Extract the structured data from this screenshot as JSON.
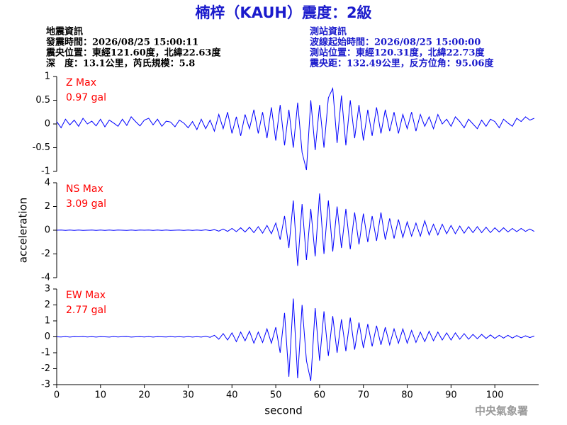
{
  "header": {
    "title": "楠梓（KAUH）震度：2級",
    "event_info": [
      "地震資訊",
      "發震時間：2026/08/25 15:00:11",
      "震央位置：東經121.60度，北緯22.63度",
      "深　度：13.1公里，芮氏規模：5.8"
    ],
    "station_info": [
      "測站資訊",
      "波線起始時間：2026/08/25 15:00:00",
      "測站位置：東經120.31度，北緯22.73度",
      "震央距：132.49公里，反方位角：95.06度"
    ]
  },
  "footer": "中央氣象署",
  "chart_data": [
    {
      "type": "line",
      "annotation": [
        "Z Max",
        "0.97 gal"
      ],
      "color": "#0000ff",
      "annotation_color": "#ff0000",
      "xlim": [
        0,
        110
      ],
      "ylim": [
        -1,
        1
      ],
      "yticks": [
        -1,
        -0.5,
        0,
        0.5,
        1
      ],
      "x": [
        0,
        1,
        2,
        3,
        4,
        5,
        6,
        7,
        8,
        9,
        10,
        11,
        12,
        13,
        14,
        15,
        16,
        17,
        18,
        19,
        20,
        21,
        22,
        23,
        24,
        25,
        26,
        27,
        28,
        29,
        30,
        31,
        32,
        33,
        34,
        35,
        36,
        37,
        38,
        39,
        40,
        41,
        42,
        43,
        44,
        45,
        46,
        47,
        48,
        49,
        50,
        51,
        52,
        53,
        54,
        55,
        56,
        57,
        58,
        59,
        60,
        61,
        62,
        63,
        64,
        65,
        66,
        67,
        68,
        69,
        70,
        71,
        72,
        73,
        74,
        75,
        76,
        77,
        78,
        79,
        80,
        81,
        82,
        83,
        84,
        85,
        86,
        87,
        88,
        89,
        90,
        91,
        92,
        93,
        94,
        95,
        96,
        97,
        98,
        99,
        100,
        101,
        102,
        103,
        104,
        105,
        106,
        107,
        108,
        109
      ],
      "values": [
        0.05,
        -0.08,
        0.1,
        -0.02,
        0.08,
        -0.05,
        0.12,
        0,
        0.06,
        -0.04,
        0.1,
        -0.06,
        0.08,
        0.02,
        -0.05,
        0.1,
        -0.03,
        0.15,
        0.05,
        -0.04,
        0.08,
        0.12,
        -0.02,
        0.1,
        -0.05,
        0.06,
        0.04,
        -0.06,
        0.08,
        0.02,
        -0.08,
        0.05,
        -0.12,
        0.1,
        -0.1,
        0.08,
        -0.15,
        0.2,
        -0.1,
        0.25,
        -0.2,
        0.15,
        -0.25,
        0.2,
        -0.1,
        0.3,
        -0.2,
        0.25,
        -0.3,
        0.35,
        -0.35,
        0.4,
        -0.45,
        0.3,
        -0.5,
        0.45,
        -0.6,
        -0.97,
        0.5,
        -0.55,
        0.4,
        -0.5,
        0.55,
        0.75,
        -0.4,
        0.6,
        -0.45,
        0.5,
        -0.3,
        0.4,
        -0.35,
        0.3,
        -0.25,
        0.35,
        -0.2,
        0.3,
        -0.15,
        0.25,
        -0.2,
        0.2,
        -0.1,
        0.25,
        -0.15,
        0.2,
        -0.05,
        0.15,
        -0.1,
        0.2,
        0,
        0.1,
        -0.05,
        0.15,
        0.05,
        -0.08,
        0.1,
        0,
        -0.1,
        0.08,
        -0.05,
        0.1,
        0.05,
        -0.08,
        0.1,
        0.02,
        -0.05,
        0.12,
        0.05,
        0.15,
        0.08,
        0.12
      ]
    },
    {
      "type": "line",
      "annotation": [
        "NS Max",
        "3.09 gal"
      ],
      "color": "#0000ff",
      "annotation_color": "#ff0000",
      "ylabel": "acceleration",
      "xlim": [
        0,
        110
      ],
      "ylim": [
        -4,
        4
      ],
      "yticks": [
        -4,
        -2,
        0,
        2,
        4
      ],
      "x": [
        0,
        1,
        2,
        3,
        4,
        5,
        6,
        7,
        8,
        9,
        10,
        11,
        12,
        13,
        14,
        15,
        16,
        17,
        18,
        19,
        20,
        21,
        22,
        23,
        24,
        25,
        26,
        27,
        28,
        29,
        30,
        31,
        32,
        33,
        34,
        35,
        36,
        37,
        38,
        39,
        40,
        41,
        42,
        43,
        44,
        45,
        46,
        47,
        48,
        49,
        50,
        51,
        52,
        53,
        54,
        55,
        56,
        57,
        58,
        59,
        60,
        61,
        62,
        63,
        64,
        65,
        66,
        67,
        68,
        69,
        70,
        71,
        72,
        73,
        74,
        75,
        76,
        77,
        78,
        79,
        80,
        81,
        82,
        83,
        84,
        85,
        86,
        87,
        88,
        89,
        90,
        91,
        92,
        93,
        94,
        95,
        96,
        97,
        98,
        99,
        100,
        101,
        102,
        103,
        104,
        105,
        106,
        107,
        108,
        109
      ],
      "values": [
        0,
        0.02,
        -0.02,
        0.01,
        -0.01,
        0.02,
        -0.02,
        0,
        0.01,
        -0.01,
        0.02,
        -0.01,
        0.01,
        -0.02,
        0.02,
        0,
        -0.01,
        0.02,
        -0.02,
        0.01,
        0,
        0.02,
        -0.01,
        0.01,
        -0.02,
        0.02,
        -0.01,
        0,
        0.01,
        -0.02,
        0.01,
        -0.02,
        0.02,
        -0.01,
        0.03,
        -0.03,
        0.05,
        -0.08,
        0.1,
        -0.1,
        0.15,
        -0.12,
        0.2,
        -0.15,
        0.25,
        -0.2,
        0.3,
        -0.25,
        0.4,
        -0.3,
        0.6,
        -0.8,
        1.2,
        -1.5,
        2.5,
        -3,
        2.2,
        -2.5,
        1.8,
        -2.2,
        3.09,
        -2,
        2.5,
        -1.8,
        2,
        -1.5,
        1.8,
        -1.6,
        1.5,
        -1.2,
        1.4,
        -1,
        1.2,
        -0.9,
        1.5,
        -0.8,
        1,
        -0.7,
        0.9,
        -0.6,
        0.7,
        -0.5,
        0.6,
        -0.5,
        0.8,
        -0.4,
        0.5,
        -0.4,
        0.5,
        -0.3,
        0.4,
        -0.3,
        0.35,
        -0.25,
        0.3,
        -0.2,
        0.3,
        -0.2,
        0.25,
        -0.2,
        0.2,
        -0.15,
        0.2,
        -0.15,
        0.15,
        -0.12,
        0.15,
        -0.1,
        0.1,
        -0.1
      ]
    },
    {
      "type": "line",
      "annotation": [
        "EW Max",
        "2.77 gal"
      ],
      "color": "#0000ff",
      "annotation_color": "#ff0000",
      "xlabel": "second",
      "xlim": [
        0,
        110
      ],
      "ylim": [
        -3,
        3
      ],
      "yticks": [
        -3,
        -2,
        -1,
        0,
        1,
        2,
        3
      ],
      "xticks": [
        0,
        10,
        20,
        30,
        40,
        50,
        60,
        70,
        80,
        90,
        100
      ],
      "x": [
        0,
        1,
        2,
        3,
        4,
        5,
        6,
        7,
        8,
        9,
        10,
        11,
        12,
        13,
        14,
        15,
        16,
        17,
        18,
        19,
        20,
        21,
        22,
        23,
        24,
        25,
        26,
        27,
        28,
        29,
        30,
        31,
        32,
        33,
        34,
        35,
        36,
        37,
        38,
        39,
        40,
        41,
        42,
        43,
        44,
        45,
        46,
        47,
        48,
        49,
        50,
        51,
        52,
        53,
        54,
        55,
        56,
        57,
        58,
        59,
        60,
        61,
        62,
        63,
        64,
        65,
        66,
        67,
        68,
        69,
        70,
        71,
        72,
        73,
        74,
        75,
        76,
        77,
        78,
        79,
        80,
        81,
        82,
        83,
        84,
        85,
        86,
        87,
        88,
        89,
        90,
        91,
        92,
        93,
        94,
        95,
        96,
        97,
        98,
        99,
        100,
        101,
        102,
        103,
        104,
        105,
        106,
        107,
        108,
        109
      ],
      "values": [
        0,
        -0.01,
        0.02,
        -0.02,
        0.01,
        0,
        0.02,
        -0.01,
        0.01,
        -0.02,
        0.01,
        0,
        -0.02,
        0.02,
        -0.01,
        0.01,
        0.02,
        -0.02,
        0,
        0.01,
        -0.01,
        0.02,
        -0.02,
        0.01,
        0,
        -0.01,
        0.02,
        -0.01,
        0.01,
        -0.02,
        0.02,
        -0.02,
        0.01,
        -0.02,
        0.03,
        -0.03,
        0.1,
        -0.15,
        0.2,
        -0.2,
        0.25,
        -0.3,
        0.3,
        -0.25,
        0.35,
        -0.4,
        0.3,
        -0.35,
        0.5,
        -0.4,
        0.6,
        -1,
        1.5,
        -2.5,
        2.4,
        -2.6,
        2,
        -1.5,
        -2.77,
        1.8,
        -1.5,
        1.6,
        -1.2,
        1.3,
        -1,
        1.1,
        -0.9,
        1.2,
        -0.8,
        0.9,
        -0.7,
        0.8,
        -0.6,
        0.7,
        -0.5,
        0.6,
        -0.5,
        0.5,
        -0.4,
        0.5,
        -0.4,
        0.4,
        -0.35,
        0.3,
        -0.3,
        0.35,
        -0.25,
        0.3,
        -0.2,
        0.25,
        -0.2,
        0.25,
        -0.15,
        0.2,
        -0.15,
        0.15,
        -0.12,
        0.15,
        -0.1,
        0.12,
        -0.1,
        0.1,
        -0.08,
        0.1,
        -0.08,
        0.08,
        -0.06,
        0.06,
        -0.05,
        0.05
      ]
    }
  ]
}
